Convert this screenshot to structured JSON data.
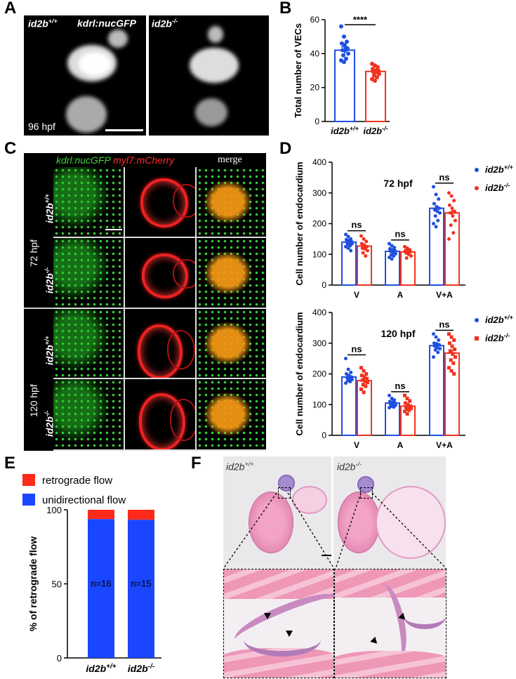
{
  "panels": {
    "A": "A",
    "B": "B",
    "C": "C",
    "D": "D",
    "E": "E",
    "F": "F"
  },
  "panelA": {
    "left_genotype": "id2b",
    "left_genotype_sup": "+/+",
    "reporter": "kdrl:nucGFP",
    "right_genotype": "id2b",
    "right_genotype_sup": "-/-",
    "timepoint": "96 hpf"
  },
  "panelC": {
    "header_green": "kdrl:nucGFP",
    "header_red": "myl7:mCherry",
    "header_merge": "merge",
    "timepoints": [
      "72 hpf",
      "120 hpf"
    ],
    "rows": [
      {
        "genotype": "id2b",
        "sup": "+/+"
      },
      {
        "genotype": "id2b",
        "sup": "-/-"
      },
      {
        "genotype": "id2b",
        "sup": "+/+"
      },
      {
        "genotype": "id2b",
        "sup": "-/-"
      }
    ]
  },
  "panelF": {
    "left_genotype": "id2b",
    "left_sup": "+/+",
    "right_genotype": "id2b",
    "right_sup": "-/-"
  },
  "colors": {
    "wt": "#1f4fe0",
    "ko": "#f0321e",
    "retro": "#ff2a1a",
    "uni": "#1a46ff"
  },
  "chart_data": [
    {
      "id": "B",
      "type": "bar",
      "ylabel": "Total number of VECs",
      "ylim": [
        0,
        60
      ],
      "yticks": [
        0,
        20,
        40,
        60
      ],
      "categories": [
        {
          "base": "id2b",
          "sup": "+/+"
        },
        {
          "base": "id2b",
          "sup": "-/-"
        }
      ],
      "means": [
        42,
        29.5
      ],
      "sem": [
        2,
        1
      ],
      "points": [
        [
          56,
          50,
          47,
          46,
          45,
          43,
          42,
          42,
          40,
          39,
          37,
          36,
          35
        ],
        [
          34,
          33,
          32,
          31,
          30,
          30,
          29,
          29,
          28,
          27,
          26,
          25,
          24
        ]
      ],
      "significance": "****"
    },
    {
      "id": "D-72",
      "type": "bar",
      "title": "72 hpf",
      "ylabel": "Cell number of endocardium",
      "ylim": [
        0,
        400
      ],
      "yticks": [
        0,
        100,
        200,
        300,
        400
      ],
      "categories": [
        "V",
        "A",
        "V+A"
      ],
      "legend": [
        {
          "base": "id2b",
          "sup": "+/+",
          "marker": "circle"
        },
        {
          "base": "id2b",
          "sup": "-/-",
          "marker": "circle"
        }
      ],
      "series": [
        {
          "means": [
            140,
            110,
            250
          ],
          "sem": [
            5,
            5,
            10
          ],
          "points": [
            [
              165,
              158,
              150,
              148,
              145,
              142,
              140,
              138,
              135,
              132,
              128,
              125,
              120,
              112
            ],
            [
              135,
              128,
              122,
              118,
              115,
              112,
              110,
              106,
              102,
              98,
              95,
              90,
              85
            ],
            [
              320,
              295,
              280,
              265,
              255,
              250,
              245,
              240,
              235,
              225,
              210,
              200,
              190
            ]
          ]
        },
        {
          "means": [
            127,
            108,
            235
          ],
          "sem": [
            6,
            4,
            12
          ],
          "points": [
            [
              160,
              150,
              142,
              135,
              130,
              125,
              120,
              118,
              112,
              105,
              95
            ],
            [
              125,
              120,
              115,
              112,
              110,
              108,
              105,
              100,
              95,
              88
            ],
            [
              300,
              290,
              275,
              260,
              250,
              240,
              235,
              225,
              210,
              195,
              170,
              150
            ]
          ]
        }
      ],
      "significance": [
        "ns",
        "ns",
        "ns"
      ]
    },
    {
      "id": "D-120",
      "type": "bar",
      "title": "120 hpf",
      "ylabel": "Cell number of endocardium",
      "ylim": [
        0,
        400
      ],
      "yticks": [
        0,
        100,
        200,
        300,
        400
      ],
      "categories": [
        "V",
        "A",
        "V+A"
      ],
      "legend": [
        {
          "base": "id2b",
          "sup": "+/+",
          "marker": "circle"
        },
        {
          "base": "id2b",
          "sup": "-/-",
          "marker": "square"
        }
      ],
      "series": [
        {
          "means": [
            190,
            105,
            292
          ],
          "sem": [
            6,
            4,
            7
          ],
          "points": [
            [
              250,
              215,
              205,
              200,
              195,
              190,
              188,
              185,
              182,
              178,
              175,
              170
            ],
            [
              130,
              120,
              115,
              110,
              108,
              105,
              102,
              100,
              98,
              95,
              92,
              90
            ],
            [
              330,
              320,
              310,
              300,
              298,
              295,
              290,
              285,
              282,
              278,
              270,
              255
            ]
          ]
        },
        {
          "means": [
            178,
            95,
            268
          ],
          "sem": [
            7,
            5,
            10
          ],
          "points": [
            [
              220,
              210,
              200,
              195,
              190,
              185,
              180,
              175,
              172,
              165,
              160,
              150,
              140
            ],
            [
              130,
              120,
              112,
              105,
              100,
              95,
              92,
              90,
              88,
              85,
              82,
              78,
              70
            ],
            [
              330,
              320,
              310,
              300,
              290,
              280,
              275,
              265,
              255,
              245,
              235,
              220,
              210,
              200
            ]
          ]
        }
      ],
      "significance": [
        "ns",
        "ns",
        "ns"
      ]
    },
    {
      "id": "E",
      "type": "bar",
      "stacked": true,
      "ylabel": "% of retrograde flow",
      "ylim": [
        0,
        100
      ],
      "yticks": [
        0,
        50,
        100
      ],
      "categories": [
        {
          "base": "id2b",
          "sup": "+/+"
        },
        {
          "base": "id2b",
          "sup": "-/-"
        }
      ],
      "legend": [
        "retrograde flow",
        "unidirectional flow"
      ],
      "series": [
        {
          "name": "unidirectional flow",
          "values": [
            93.75,
            93.3
          ]
        },
        {
          "name": "retrograde flow",
          "values": [
            6.25,
            6.7
          ]
        }
      ],
      "annotations": [
        "n=16",
        "n=15"
      ]
    }
  ]
}
